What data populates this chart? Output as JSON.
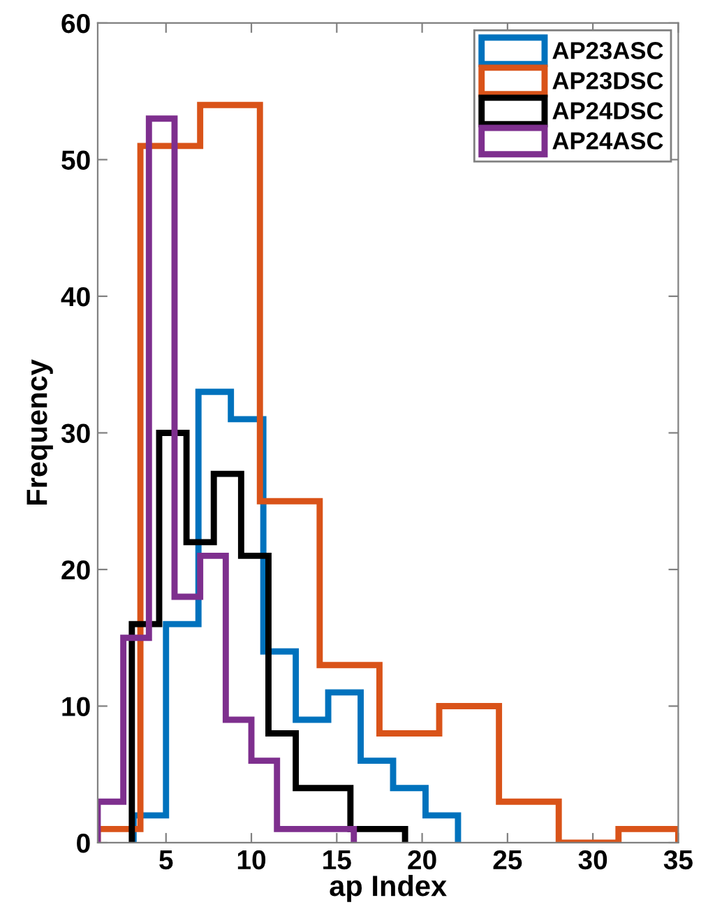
{
  "chart_data": {
    "type": "step",
    "xlabel": "ap Index",
    "ylabel": "Frequency",
    "xlim": [
      1,
      35
    ],
    "xticks": [
      5,
      10,
      15,
      20,
      25,
      30,
      35
    ],
    "ylim": [
      0,
      60
    ],
    "yticks": [
      0,
      10,
      20,
      30,
      40,
      50,
      60
    ],
    "grid": false,
    "legend": "top right",
    "series": [
      {
        "name": "AP23ASC",
        "color": "#0072bd",
        "x": [
          3.1,
          3.1,
          5.0,
          6.9,
          8.8,
          10.7,
          12.6,
          14.5,
          16.4,
          18.3,
          20.2,
          22.1
        ],
        "values": [
          0,
          2,
          16,
          33,
          31,
          14,
          9,
          11,
          6,
          4,
          2,
          0
        ]
      },
      {
        "name": "AP23DSC",
        "color": "#d95319",
        "x": [
          1,
          1,
          3.5,
          7,
          10.5,
          14,
          17.5,
          21,
          24.5,
          28,
          31.5,
          35
        ],
        "values": [
          0,
          1,
          51,
          54,
          25,
          13,
          8,
          10,
          3,
          0,
          1,
          0
        ]
      },
      {
        "name": "AP24DSC",
        "color": "#000000",
        "x": [
          3,
          3,
          4.6,
          6.2,
          7.8,
          9.4,
          11,
          12.6,
          14.2,
          15.8,
          17.4,
          19
        ],
        "values": [
          0,
          16,
          30,
          22,
          27,
          21,
          8,
          4,
          4,
          1,
          1,
          0
        ]
      },
      {
        "name": "AP24ASC",
        "color": "#7e2f8e",
        "x": [
          1,
          1,
          2.5,
          4,
          5.5,
          7,
          8.5,
          10,
          11.5,
          13,
          14.5,
          16
        ],
        "values": [
          0,
          3,
          15,
          53,
          18,
          21,
          9,
          6,
          1,
          1,
          1,
          0
        ]
      }
    ]
  }
}
